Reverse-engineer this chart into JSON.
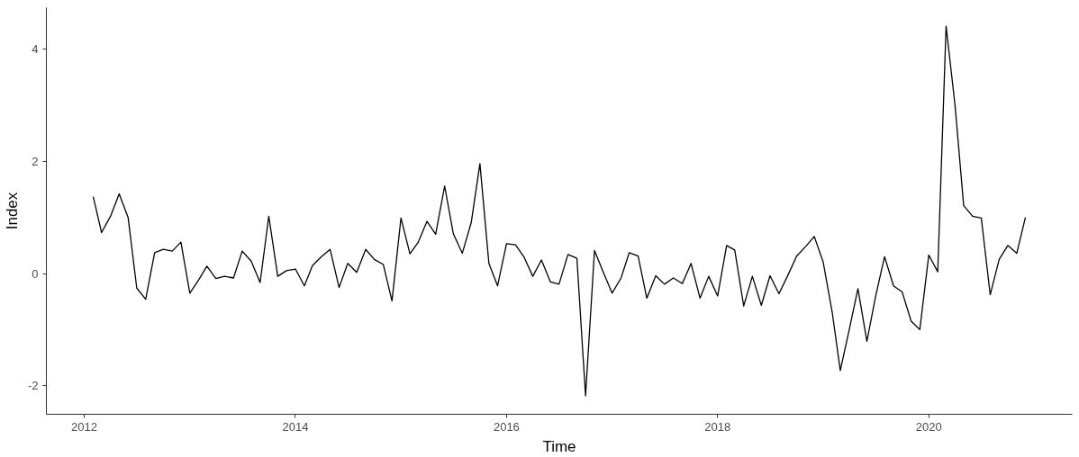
{
  "chart_data": {
    "type": "line",
    "xlabel": "Time",
    "ylabel": "Index",
    "x": [
      "2012-02",
      "2012-03",
      "2012-04",
      "2012-05",
      "2012-06",
      "2012-07",
      "2012-08",
      "2012-09",
      "2012-10",
      "2012-11",
      "2012-12",
      "2013-01",
      "2013-02",
      "2013-03",
      "2013-04",
      "2013-05",
      "2013-06",
      "2013-07",
      "2013-08",
      "2013-09",
      "2013-10",
      "2013-11",
      "2013-12",
      "2014-01",
      "2014-02",
      "2014-03",
      "2014-04",
      "2014-05",
      "2014-06",
      "2014-07",
      "2014-08",
      "2014-09",
      "2014-10",
      "2014-11",
      "2014-12",
      "2015-01",
      "2015-02",
      "2015-03",
      "2015-04",
      "2015-05",
      "2015-06",
      "2015-07",
      "2015-08",
      "2015-09",
      "2015-10",
      "2015-11",
      "2015-12",
      "2016-01",
      "2016-02",
      "2016-03",
      "2016-04",
      "2016-05",
      "2016-06",
      "2016-07",
      "2016-08",
      "2016-09",
      "2016-10",
      "2016-11",
      "2016-12",
      "2017-01",
      "2017-02",
      "2017-03",
      "2017-04",
      "2017-05",
      "2017-06",
      "2017-07",
      "2017-08",
      "2017-09",
      "2017-10",
      "2017-11",
      "2017-12",
      "2018-01",
      "2018-02",
      "2018-03",
      "2018-04",
      "2018-05",
      "2018-06",
      "2018-07",
      "2018-08",
      "2018-09",
      "2018-10",
      "2018-11",
      "2018-12",
      "2019-01",
      "2019-02",
      "2019-03",
      "2019-04",
      "2019-05",
      "2019-06",
      "2019-07",
      "2019-08",
      "2019-09",
      "2019-10",
      "2019-11",
      "2019-12",
      "2020-01",
      "2020-02",
      "2020-03",
      "2020-04",
      "2020-05",
      "2020-06",
      "2020-07",
      "2020-08",
      "2020-09",
      "2020-10",
      "2020-11",
      "2020-12"
    ],
    "series": [
      {
        "color": "#000000",
        "values": [
          1.37,
          0.73,
          1.02,
          1.42,
          1.0,
          -0.26,
          -0.46,
          0.37,
          0.43,
          0.4,
          0.56,
          -0.35,
          -0.11,
          0.13,
          -0.09,
          -0.05,
          -0.08,
          0.4,
          0.22,
          -0.16,
          1.02,
          -0.05,
          0.05,
          0.08,
          -0.22,
          0.14,
          0.3,
          0.43,
          -0.25,
          0.18,
          0.02,
          0.43,
          0.25,
          0.16,
          -0.49,
          0.99,
          0.35,
          0.55,
          0.93,
          0.7,
          1.56,
          0.71,
          0.36,
          0.91,
          1.96,
          0.18,
          -0.22,
          0.53,
          0.51,
          0.3,
          -0.05,
          0.24,
          -0.15,
          -0.19,
          0.34,
          0.27,
          -2.18,
          0.41,
          0.03,
          -0.35,
          -0.08,
          0.37,
          0.31,
          -0.44,
          -0.04,
          -0.19,
          -0.08,
          -0.18,
          0.18,
          -0.44,
          -0.05,
          -0.4,
          0.5,
          0.42,
          -0.58,
          -0.05,
          -0.57,
          -0.04,
          -0.36,
          -0.03,
          0.31,
          0.48,
          0.66,
          0.2,
          -0.69,
          -1.73,
          -1.0,
          -0.27,
          -1.21,
          -0.41,
          0.3,
          -0.22,
          -0.33,
          -0.85,
          -1.0,
          0.33,
          0.03,
          4.41,
          3.0,
          1.21,
          1.02,
          0.99,
          -0.38,
          0.25,
          0.5,
          0.36,
          1.0
        ]
      }
    ],
    "xlim": [
      "2011-08-23",
      "2021-05-12"
    ],
    "xticks": [
      {
        "value": "2012",
        "label": "2012"
      },
      {
        "value": "2014",
        "label": "2014"
      },
      {
        "value": "2016",
        "label": "2016"
      },
      {
        "value": "2018",
        "label": "2018"
      },
      {
        "value": "2020",
        "label": "2020"
      }
    ],
    "ylim": [
      -2.51,
      4.74
    ],
    "yticks": [
      {
        "value": -2,
        "label": "-2"
      },
      0,
      2,
      4
    ],
    "grid": false,
    "marker": "none",
    "line_style": "solid"
  }
}
